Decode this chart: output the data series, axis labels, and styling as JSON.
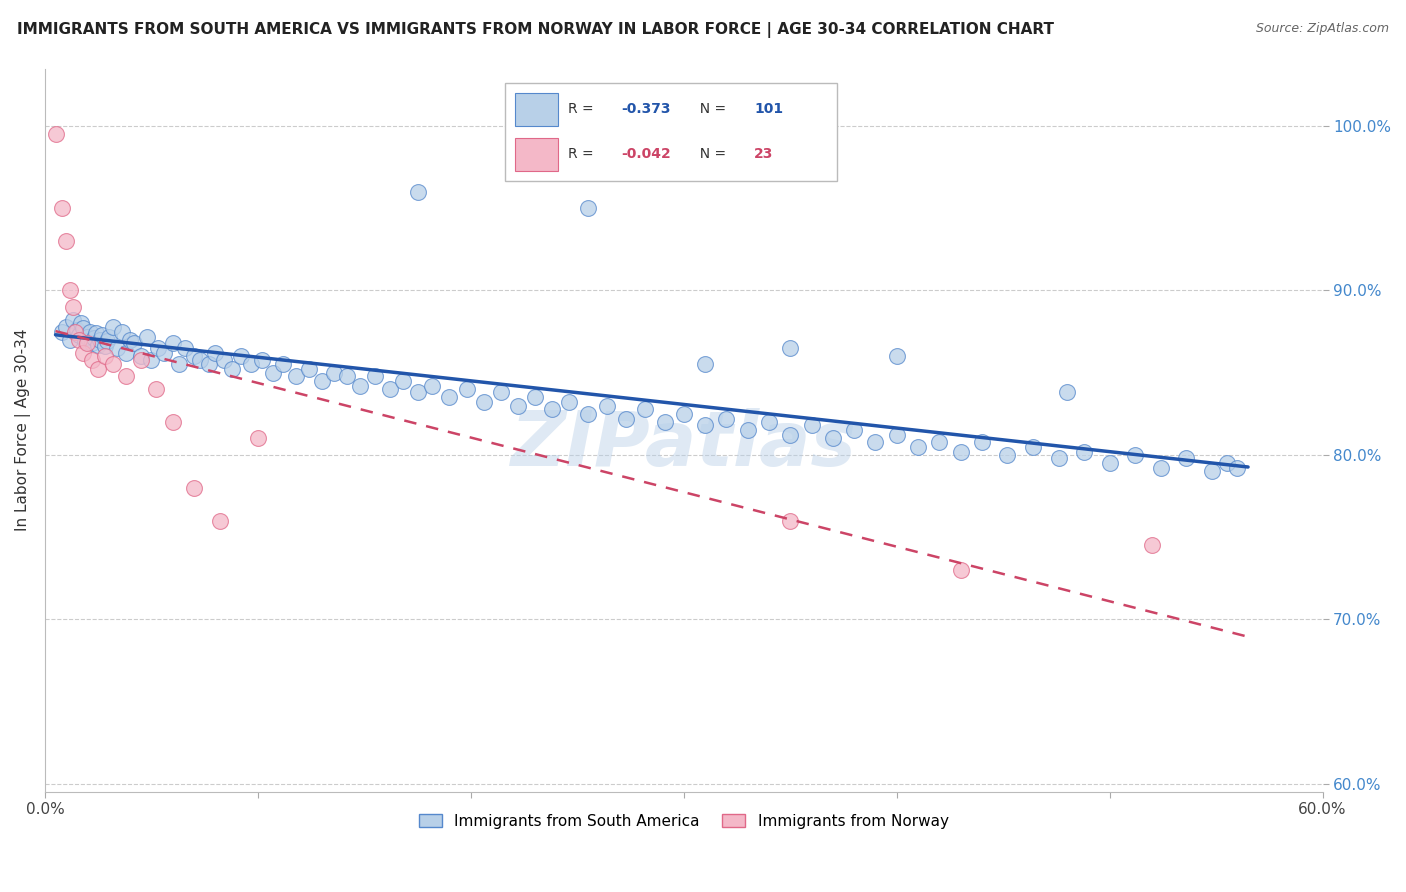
{
  "title": "IMMIGRANTS FROM SOUTH AMERICA VS IMMIGRANTS FROM NORWAY IN LABOR FORCE | AGE 30-34 CORRELATION CHART",
  "source": "Source: ZipAtlas.com",
  "ylabel": "In Labor Force | Age 30-34",
  "xlim": [
    0.0,
    0.6
  ],
  "ylim": [
    0.595,
    1.035
  ],
  "yticks": [
    0.6,
    0.7,
    0.8,
    0.9,
    1.0
  ],
  "ytick_labels": [
    "60.0%",
    "70.0%",
    "80.0%",
    "90.0%",
    "100.0%"
  ],
  "xticks": [
    0.0,
    0.1,
    0.2,
    0.3,
    0.4,
    0.5,
    0.6
  ],
  "xtick_labels": [
    "0.0%",
    "",
    "",
    "",
    "",
    "",
    "60.0%"
  ],
  "blue_R": -0.373,
  "blue_N": 101,
  "pink_R": -0.042,
  "pink_N": 23,
  "blue_color": "#b8d0e8",
  "blue_edge_color": "#5588cc",
  "blue_line_color": "#2255aa",
  "pink_color": "#f4b8c8",
  "pink_edge_color": "#e06888",
  "pink_line_color": "#cc4466",
  "watermark": "ZIPatlas",
  "legend_blue_label": "Immigrants from South America",
  "legend_pink_label": "Immigrants from Norway",
  "blue_x": [
    0.008,
    0.01,
    0.012,
    0.013,
    0.015,
    0.016,
    0.017,
    0.018,
    0.019,
    0.02,
    0.021,
    0.022,
    0.023,
    0.024,
    0.025,
    0.026,
    0.027,
    0.028,
    0.029,
    0.03,
    0.032,
    0.034,
    0.036,
    0.038,
    0.04,
    0.042,
    0.045,
    0.048,
    0.05,
    0.053,
    0.056,
    0.06,
    0.063,
    0.066,
    0.07,
    0.073,
    0.077,
    0.08,
    0.084,
    0.088,
    0.092,
    0.097,
    0.102,
    0.107,
    0.112,
    0.118,
    0.124,
    0.13,
    0.136,
    0.142,
    0.148,
    0.155,
    0.162,
    0.168,
    0.175,
    0.182,
    0.19,
    0.198,
    0.206,
    0.214,
    0.222,
    0.23,
    0.238,
    0.246,
    0.255,
    0.264,
    0.273,
    0.282,
    0.291,
    0.3,
    0.31,
    0.32,
    0.33,
    0.34,
    0.35,
    0.36,
    0.37,
    0.38,
    0.39,
    0.4,
    0.41,
    0.42,
    0.43,
    0.44,
    0.452,
    0.464,
    0.476,
    0.488,
    0.5,
    0.512,
    0.524,
    0.536,
    0.548,
    0.555,
    0.56,
    0.4,
    0.255,
    0.175,
    0.48,
    0.35,
    0.31
  ],
  "blue_y": [
    0.875,
    0.878,
    0.87,
    0.882,
    0.876,
    0.873,
    0.88,
    0.877,
    0.869,
    0.872,
    0.875,
    0.868,
    0.871,
    0.874,
    0.867,
    0.87,
    0.873,
    0.866,
    0.869,
    0.872,
    0.878,
    0.865,
    0.875,
    0.862,
    0.87,
    0.868,
    0.86,
    0.872,
    0.858,
    0.865,
    0.862,
    0.868,
    0.855,
    0.865,
    0.86,
    0.858,
    0.855,
    0.862,
    0.858,
    0.852,
    0.86,
    0.855,
    0.858,
    0.85,
    0.855,
    0.848,
    0.852,
    0.845,
    0.85,
    0.848,
    0.842,
    0.848,
    0.84,
    0.845,
    0.838,
    0.842,
    0.835,
    0.84,
    0.832,
    0.838,
    0.83,
    0.835,
    0.828,
    0.832,
    0.825,
    0.83,
    0.822,
    0.828,
    0.82,
    0.825,
    0.818,
    0.822,
    0.815,
    0.82,
    0.812,
    0.818,
    0.81,
    0.815,
    0.808,
    0.812,
    0.805,
    0.808,
    0.802,
    0.808,
    0.8,
    0.805,
    0.798,
    0.802,
    0.795,
    0.8,
    0.792,
    0.798,
    0.79,
    0.795,
    0.792,
    0.86,
    0.95,
    0.96,
    0.838,
    0.865,
    0.855
  ],
  "pink_x": [
    0.005,
    0.008,
    0.01,
    0.012,
    0.013,
    0.014,
    0.016,
    0.018,
    0.02,
    0.022,
    0.025,
    0.028,
    0.032,
    0.038,
    0.045,
    0.052,
    0.06,
    0.07,
    0.082,
    0.1,
    0.35,
    0.43,
    0.52
  ],
  "pink_y": [
    0.995,
    0.95,
    0.93,
    0.9,
    0.89,
    0.875,
    0.87,
    0.862,
    0.868,
    0.858,
    0.852,
    0.86,
    0.855,
    0.848,
    0.858,
    0.84,
    0.82,
    0.78,
    0.76,
    0.81,
    0.76,
    0.73,
    0.745
  ]
}
